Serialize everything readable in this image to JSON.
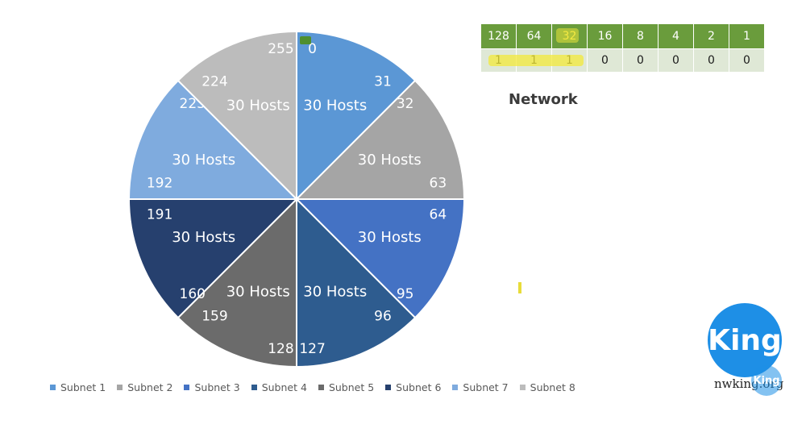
{
  "chart_data": {
    "type": "pie",
    "title": "",
    "categories": [
      "Subnet 1",
      "Subnet 2",
      "Subnet 3",
      "Subnet 4",
      "Subnet 5",
      "Subnet 6",
      "Subnet 7",
      "Subnet 8"
    ],
    "values": [
      1,
      1,
      1,
      1,
      1,
      1,
      1,
      1
    ],
    "slice_labels": [
      "30 Hosts",
      "30 Hosts",
      "30 Hosts",
      "30 Hosts",
      "30 Hosts",
      "30 Hosts",
      "30 Hosts",
      "30 Hosts"
    ],
    "ranges": [
      {
        "start": "0",
        "end": "31"
      },
      {
        "start": "32",
        "end": "63"
      },
      {
        "start": "64",
        "end": "95"
      },
      {
        "start": "96",
        "end": "127"
      },
      {
        "start": "128",
        "end": "159"
      },
      {
        "start": "160",
        "end": "191"
      },
      {
        "start": "192",
        "end": "223"
      },
      {
        "start": "224",
        "end": "255"
      }
    ],
    "colors": [
      "#5b97d5",
      "#a5a5a5",
      "#4472c4",
      "#2e5c8f",
      "#6b6b6b",
      "#26406e",
      "#7fabde",
      "#bcbcbc"
    ],
    "legend": "bottom"
  },
  "bit_table": {
    "headers": [
      "128",
      "64",
      "32",
      "16",
      "8",
      "4",
      "2",
      "1"
    ],
    "bits": [
      "1",
      "1",
      "1",
      "0",
      "0",
      "0",
      "0",
      "0"
    ]
  },
  "network_label": "Network",
  "logo": {
    "text": "King",
    "small_text": "King",
    "site": "nwking.org"
  }
}
